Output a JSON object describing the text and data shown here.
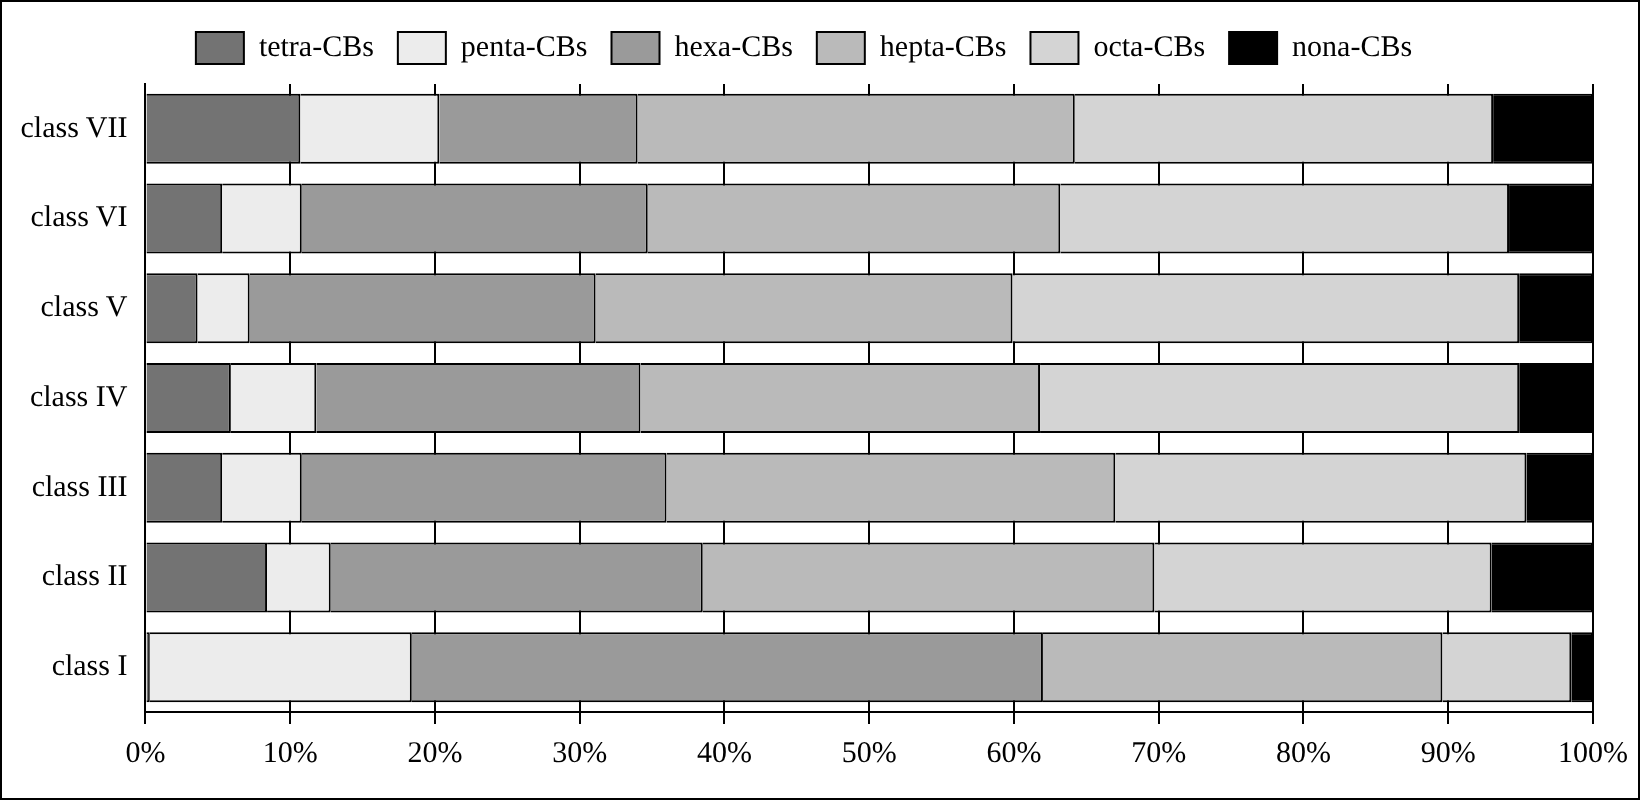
{
  "chart_data": {
    "type": "bar",
    "orientation": "horizontal",
    "stacked": true,
    "categories": [
      "class VII",
      "class VI",
      "class V",
      "class IV",
      "class III",
      "class II",
      "class I"
    ],
    "series": [
      {
        "name": "tetra-CBs",
        "color": "#737373",
        "values": [
          10.7,
          5.3,
          3.6,
          5.9,
          5.3,
          8.4,
          0.3
        ]
      },
      {
        "name": "penta-CBs",
        "color": "#ececec",
        "values": [
          9.6,
          5.5,
          3.6,
          5.9,
          5.5,
          4.4,
          18.1
        ]
      },
      {
        "name": "hexa-CBs",
        "color": "#9a9a9a",
        "values": [
          13.7,
          23.9,
          23.9,
          22.4,
          25.2,
          25.7,
          43.6
        ]
      },
      {
        "name": "hepta-CBs",
        "color": "#bababa",
        "values": [
          30.2,
          28.5,
          28.8,
          27.6,
          31.0,
          31.2,
          27.6
        ]
      },
      {
        "name": "octa-CBs",
        "color": "#d4d4d4",
        "values": [
          28.9,
          31.0,
          35.0,
          33.1,
          28.4,
          23.3,
          8.9
        ]
      },
      {
        "name": "nona-CBs",
        "color": "#000000",
        "values": [
          6.9,
          5.8,
          5.1,
          5.1,
          4.6,
          7.0,
          1.5
        ]
      }
    ],
    "xlim": [
      0,
      100
    ],
    "xticks": [
      {
        "value": 0,
        "label": "0%"
      },
      {
        "value": 10,
        "label": "10%"
      },
      {
        "value": 20,
        "label": "20%"
      },
      {
        "value": 30,
        "label": "30%"
      },
      {
        "value": 40,
        "label": "40%"
      },
      {
        "value": 50,
        "label": "50%"
      },
      {
        "value": 60,
        "label": "60%"
      },
      {
        "value": 70,
        "label": "70%"
      },
      {
        "value": 80,
        "label": "80%"
      },
      {
        "value": 90,
        "label": "90%"
      },
      {
        "value": 100,
        "label": "100%"
      }
    ],
    "grid": "x",
    "legend": "top"
  }
}
